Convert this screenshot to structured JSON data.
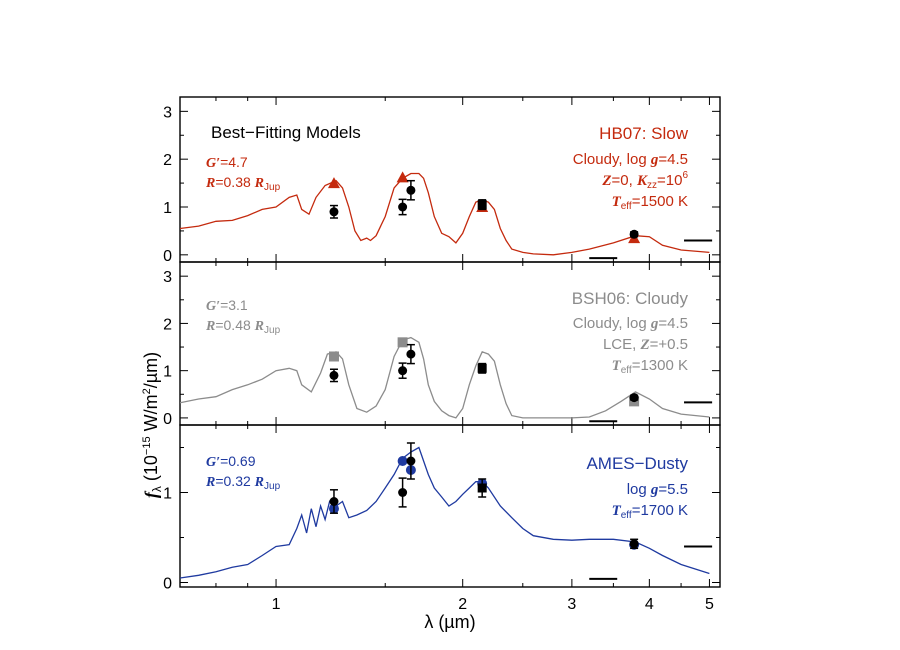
{
  "chart_data": {
    "type": "line",
    "xlabel": "λ (µm)",
    "ylabel_main": "f",
    "ylabel_sub": "λ",
    "ylabel_rest": " (10",
    "ylabel_exp": "−15",
    "ylabel_unit1": " W/m",
    "ylabel_unit_exp": "2",
    "ylabel_unit2": "/µm)",
    "xscale": "log",
    "xlim": [
      0.7,
      5.2
    ],
    "xticks": [
      {
        "v": 1,
        "label": "1"
      },
      {
        "v": 2,
        "label": "2"
      },
      {
        "v": 3,
        "label": "3"
      },
      {
        "v": 4,
        "label": "4"
      },
      {
        "v": 5,
        "label": "5"
      }
    ],
    "observed": [
      {
        "x": 1.24,
        "y": 0.9,
        "err": 0.13
      },
      {
        "x": 1.6,
        "y": 1.0,
        "err": 0.16
      },
      {
        "x": 1.65,
        "y": 1.35,
        "err": 0.2
      },
      {
        "x": 2.15,
        "y": 1.05,
        "err": 0.1
      },
      {
        "x": 3.78,
        "y": 0.43,
        "err": 0.05
      }
    ],
    "panels": [
      {
        "id": "top",
        "ylim": [
          -0.15,
          3.3
        ],
        "yticks": [
          0,
          1,
          2,
          3
        ],
        "title": "Best−Fitting Models",
        "model": "HB07: Slow",
        "color": "#c42a0e",
        "marker": "triangle",
        "obs_marker": "circle",
        "obs_square_at_k": true,
        "g_line": "=4.7",
        "r_line": "=0.38",
        "params": [
          "Cloudy, log g=4.5",
          "Z=0, Kzz=10^6",
          "Teff=1500 K"
        ],
        "param_text": {
          "l1a": "Cloudy, log ",
          "l1b": "=4.5",
          "l2a": "=0, ",
          "l2b": "=10",
          "l2exp": "6",
          "l3a": "=1500 K"
        },
        "model_phot": [
          {
            "x": 1.24,
            "y": 1.5
          },
          {
            "x": 1.6,
            "y": 1.62
          },
          {
            "x": 2.15,
            "y": 1.0
          },
          {
            "x": 3.78,
            "y": 0.35
          }
        ],
        "spectrum": [
          [
            0.7,
            0.55
          ],
          [
            0.75,
            0.6
          ],
          [
            0.8,
            0.7
          ],
          [
            0.85,
            0.72
          ],
          [
            0.9,
            0.82
          ],
          [
            0.95,
            0.95
          ],
          [
            1.0,
            1.0
          ],
          [
            1.05,
            1.2
          ],
          [
            1.08,
            1.25
          ],
          [
            1.1,
            0.95
          ],
          [
            1.13,
            0.85
          ],
          [
            1.16,
            1.2
          ],
          [
            1.2,
            1.45
          ],
          [
            1.25,
            1.55
          ],
          [
            1.28,
            1.4
          ],
          [
            1.31,
            1.0
          ],
          [
            1.34,
            0.5
          ],
          [
            1.37,
            0.3
          ],
          [
            1.4,
            0.35
          ],
          [
            1.42,
            0.3
          ],
          [
            1.45,
            0.4
          ],
          [
            1.5,
            0.8
          ],
          [
            1.55,
            1.4
          ],
          [
            1.6,
            1.6
          ],
          [
            1.65,
            1.7
          ],
          [
            1.7,
            1.7
          ],
          [
            1.73,
            1.6
          ],
          [
            1.76,
            1.3
          ],
          [
            1.8,
            0.8
          ],
          [
            1.85,
            0.45
          ],
          [
            1.9,
            0.38
          ],
          [
            1.95,
            0.25
          ],
          [
            2.0,
            0.45
          ],
          [
            2.05,
            0.8
          ],
          [
            2.1,
            1.1
          ],
          [
            2.15,
            1.15
          ],
          [
            2.2,
            1.1
          ],
          [
            2.25,
            0.95
          ],
          [
            2.3,
            0.55
          ],
          [
            2.35,
            0.3
          ],
          [
            2.4,
            0.12
          ],
          [
            2.5,
            0.05
          ],
          [
            2.6,
            0.02
          ],
          [
            2.8,
            0.0
          ],
          [
            3.0,
            0.05
          ],
          [
            3.2,
            0.12
          ],
          [
            3.5,
            0.25
          ],
          [
            3.8,
            0.4
          ],
          [
            4.0,
            0.38
          ],
          [
            4.2,
            0.2
          ],
          [
            4.5,
            0.1
          ],
          [
            5.0,
            0.05
          ]
        ],
        "bars": [
          {
            "x1": 3.2,
            "x2": 3.55,
            "y": -0.07
          },
          {
            "x1": 4.55,
            "x2": 5.05,
            "y": 0.3
          }
        ]
      },
      {
        "id": "middle",
        "ylim": [
          -0.15,
          3.3
        ],
        "yticks": [
          0,
          1,
          2,
          3
        ],
        "title": "",
        "model": "BSH06: Cloudy",
        "color": "#8c8c8c",
        "marker": "square",
        "obs_marker": "circle",
        "obs_square_at_k": true,
        "g_line": "=3.1",
        "r_line": "=0.48",
        "params": [
          "Cloudy, log g=4.5",
          "LCE, Z=+0.5",
          "Teff=1300 K"
        ],
        "param_text": {
          "l1a": "Cloudy, log ",
          "l1b": "=4.5",
          "l2a": "LCE, ",
          "l2b": "=+0.5",
          "l3a": "=1300 K"
        },
        "model_phot": [
          {
            "x": 1.24,
            "y": 1.3
          },
          {
            "x": 1.6,
            "y": 1.6
          },
          {
            "x": 3.78,
            "y": 0.35
          }
        ],
        "spectrum": [
          [
            0.7,
            0.32
          ],
          [
            0.75,
            0.4
          ],
          [
            0.8,
            0.45
          ],
          [
            0.85,
            0.6
          ],
          [
            0.9,
            0.7
          ],
          [
            0.95,
            0.82
          ],
          [
            1.0,
            1.0
          ],
          [
            1.05,
            1.05
          ],
          [
            1.08,
            1.0
          ],
          [
            1.1,
            0.7
          ],
          [
            1.14,
            0.55
          ],
          [
            1.18,
            0.95
          ],
          [
            1.21,
            1.35
          ],
          [
            1.25,
            1.4
          ],
          [
            1.28,
            1.25
          ],
          [
            1.31,
            0.7
          ],
          [
            1.35,
            0.2
          ],
          [
            1.4,
            0.12
          ],
          [
            1.45,
            0.25
          ],
          [
            1.5,
            0.6
          ],
          [
            1.55,
            1.3
          ],
          [
            1.6,
            1.65
          ],
          [
            1.65,
            1.7
          ],
          [
            1.7,
            1.6
          ],
          [
            1.73,
            1.25
          ],
          [
            1.76,
            0.7
          ],
          [
            1.8,
            0.35
          ],
          [
            1.85,
            0.15
          ],
          [
            1.9,
            0.05
          ],
          [
            1.95,
            0.0
          ],
          [
            2.0,
            0.2
          ],
          [
            2.05,
            0.7
          ],
          [
            2.1,
            1.1
          ],
          [
            2.15,
            1.4
          ],
          [
            2.2,
            1.35
          ],
          [
            2.25,
            1.2
          ],
          [
            2.3,
            0.7
          ],
          [
            2.35,
            0.3
          ],
          [
            2.4,
            0.05
          ],
          [
            2.5,
            0.0
          ],
          [
            2.6,
            0.0
          ],
          [
            2.8,
            0.0
          ],
          [
            3.0,
            0.0
          ],
          [
            3.2,
            0.02
          ],
          [
            3.4,
            0.15
          ],
          [
            3.6,
            0.35
          ],
          [
            3.8,
            0.55
          ],
          [
            4.0,
            0.4
          ],
          [
            4.2,
            0.2
          ],
          [
            4.5,
            0.08
          ],
          [
            5.0,
            0.02
          ]
        ],
        "bars": [
          {
            "x1": 3.2,
            "x2": 3.55,
            "y": -0.07
          },
          {
            "x1": 4.55,
            "x2": 5.05,
            "y": 0.33
          }
        ]
      },
      {
        "id": "bottom",
        "ylim": [
          -0.05,
          1.75
        ],
        "yticks": [
          0,
          1
        ],
        "title": "",
        "model": "AMES−Dusty",
        "color": "#1f3aa0",
        "marker": "circle",
        "obs_marker": "circle",
        "obs_square_at_k": true,
        "g_line": "=0.69",
        "r_line": "=0.32",
        "params": [
          "log g=5.5",
          "Teff=1700 K"
        ],
        "param_text": {
          "l1a": "log ",
          "l1b": "=5.5",
          "l3a": "=1700 K"
        },
        "model_phot": [
          {
            "x": 1.24,
            "y": 0.82
          },
          {
            "x": 1.6,
            "y": 1.35
          },
          {
            "x": 1.65,
            "y": 1.25
          },
          {
            "x": 2.15,
            "y": 1.1
          },
          {
            "x": 3.78,
            "y": 0.42
          }
        ],
        "spectrum": [
          [
            0.7,
            0.05
          ],
          [
            0.75,
            0.08
          ],
          [
            0.8,
            0.12
          ],
          [
            0.85,
            0.17
          ],
          [
            0.9,
            0.2
          ],
          [
            0.95,
            0.3
          ],
          [
            1.0,
            0.4
          ],
          [
            1.05,
            0.42
          ],
          [
            1.08,
            0.6
          ],
          [
            1.1,
            0.75
          ],
          [
            1.12,
            0.55
          ],
          [
            1.14,
            0.82
          ],
          [
            1.16,
            0.62
          ],
          [
            1.18,
            0.85
          ],
          [
            1.2,
            0.7
          ],
          [
            1.22,
            0.9
          ],
          [
            1.25,
            0.85
          ],
          [
            1.28,
            0.9
          ],
          [
            1.31,
            0.72
          ],
          [
            1.35,
            0.75
          ],
          [
            1.4,
            0.8
          ],
          [
            1.45,
            0.9
          ],
          [
            1.5,
            1.05
          ],
          [
            1.55,
            1.2
          ],
          [
            1.6,
            1.38
          ],
          [
            1.65,
            1.45
          ],
          [
            1.7,
            1.5
          ],
          [
            1.73,
            1.35
          ],
          [
            1.76,
            1.2
          ],
          [
            1.8,
            1.05
          ],
          [
            1.85,
            0.95
          ],
          [
            1.9,
            0.85
          ],
          [
            1.95,
            0.9
          ],
          [
            2.0,
            0.98
          ],
          [
            2.05,
            1.05
          ],
          [
            2.1,
            1.12
          ],
          [
            2.15,
            1.12
          ],
          [
            2.2,
            1.05
          ],
          [
            2.3,
            0.85
          ],
          [
            2.4,
            0.72
          ],
          [
            2.5,
            0.6
          ],
          [
            2.6,
            0.52
          ],
          [
            2.8,
            0.48
          ],
          [
            3.0,
            0.47
          ],
          [
            3.2,
            0.48
          ],
          [
            3.5,
            0.48
          ],
          [
            3.8,
            0.45
          ],
          [
            4.0,
            0.38
          ],
          [
            4.2,
            0.3
          ],
          [
            4.5,
            0.2
          ],
          [
            5.0,
            0.1
          ]
        ],
        "bars": [
          {
            "x1": 3.2,
            "x2": 3.55,
            "y": 0.04
          },
          {
            "x1": 4.55,
            "x2": 5.05,
            "y": 0.4
          }
        ]
      }
    ]
  },
  "labels": {
    "g_prefix": "G′",
    "r_prefix": "R",
    "r_unit": "R",
    "r_unit_sub": "Jup",
    "g_sym": "g",
    "z_sym": "Z",
    "k_sym": "K",
    "k_sub": "zz",
    "t_sym": "T",
    "t_sub": "eff"
  }
}
